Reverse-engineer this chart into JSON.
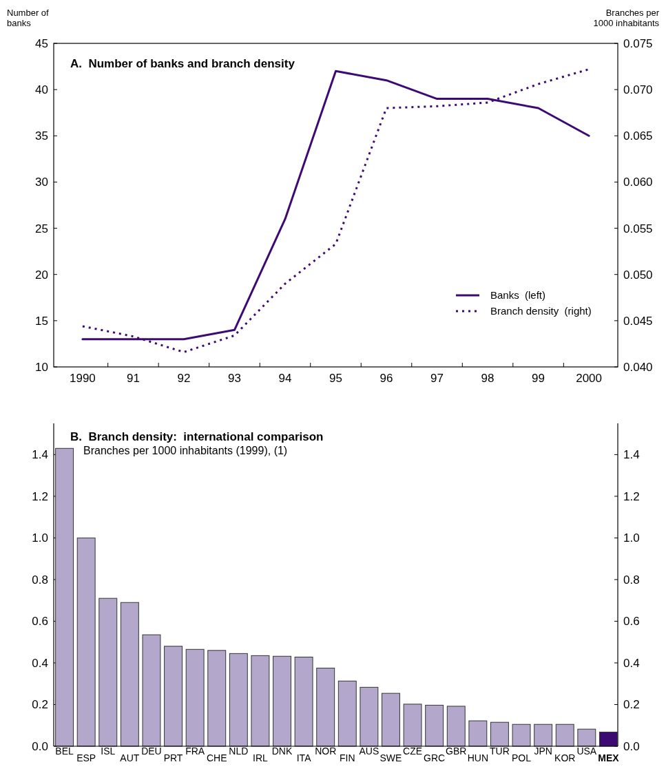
{
  "chart_data": [
    {
      "type": "line",
      "title": "A.  Number of banks and branch density",
      "ylabel": "Number of banks",
      "y2label": "Branches per 1000 inhabitants",
      "categories": [
        "1990",
        "91",
        "92",
        "93",
        "94",
        "95",
        "96",
        "97",
        "98",
        "99",
        "2000"
      ],
      "series": [
        {
          "name": "Banks  (left)",
          "color": "#3d0a73",
          "line_style": "solid",
          "values": [
            13,
            13,
            13,
            14,
            26,
            42,
            41,
            39,
            39,
            38,
            35
          ]
        },
        {
          "name": "Branch density  (right)",
          "color": "#3d0a73",
          "line_style": "dotted",
          "axis": "y2",
          "values": [
            0.0444,
            0.0433,
            0.0416,
            0.0434,
            0.049,
            0.0533,
            0.068,
            0.0682,
            0.0686,
            0.0706,
            0.0722
          ]
        }
      ],
      "ylim": [
        10,
        45
      ],
      "yticks": [
        10,
        15,
        20,
        25,
        30,
        35,
        40,
        45
      ],
      "y2lim": [
        0.04,
        0.075
      ],
      "y2ticks": [
        {
          "value": 0.04,
          "label": "0.040"
        },
        {
          "value": 0.045,
          "label": "0.045"
        },
        {
          "value": 0.05,
          "label": "0.050"
        },
        {
          "value": 0.055,
          "label": "0.055"
        },
        {
          "value": 0.06,
          "label": "0.060"
        },
        {
          "value": 0.065,
          "label": "0.065"
        },
        {
          "value": 0.07,
          "label": "0.070"
        },
        {
          "value": 0.075,
          "label": "0.075"
        }
      ],
      "legend": "bottom right",
      "grid": false
    },
    {
      "type": "bar",
      "title": "B.  Branch density:  international comparison",
      "subtitle": "Branches per 1000 inhabitants (1999), (1)",
      "categories": [
        "BEL",
        "ESP",
        "ISL",
        "AUT",
        "DEU",
        "PRT",
        "FRA",
        "CHE",
        "NLD",
        "IRL",
        "DNK",
        "ITA",
        "NOR",
        "FIN",
        "AUS",
        "SWE",
        "CZE",
        "GRC",
        "GBR",
        "HUN",
        "TUR",
        "POL",
        "JPN",
        "KOR",
        "USA",
        "MEX"
      ],
      "values": [
        1.43,
        1.0,
        0.71,
        0.69,
        0.535,
        0.48,
        0.465,
        0.46,
        0.445,
        0.435,
        0.432,
        0.428,
        0.375,
        0.313,
        0.283,
        0.254,
        0.202,
        0.197,
        0.192,
        0.122,
        0.115,
        0.105,
        0.105,
        0.105,
        0.082,
        0.068
      ],
      "colors": [
        "#b3a8cc",
        "#b3a8cc",
        "#b3a8cc",
        "#b3a8cc",
        "#b3a8cc",
        "#b3a8cc",
        "#b3a8cc",
        "#b3a8cc",
        "#b3a8cc",
        "#b3a8cc",
        "#b3a8cc",
        "#b3a8cc",
        "#b3a8cc",
        "#b3a8cc",
        "#b3a8cc",
        "#b3a8cc",
        "#b3a8cc",
        "#b3a8cc",
        "#b3a8cc",
        "#b3a8cc",
        "#b3a8cc",
        "#b3a8cc",
        "#b3a8cc",
        "#b3a8cc",
        "#b3a8cc",
        "#3d0a73"
      ],
      "ylim": [
        0,
        1.55
      ],
      "yticks": [
        {
          "value": 0,
          "label": "0.0"
        },
        {
          "value": 0.2,
          "label": "0.2"
        },
        {
          "value": 0.4,
          "label": "0.4"
        },
        {
          "value": 0.6,
          "label": "0.6"
        },
        {
          "value": 0.8,
          "label": "0.8"
        },
        {
          "value": 1.0,
          "label": "1.0"
        },
        {
          "value": 1.2,
          "label": "1.2"
        },
        {
          "value": 1.4,
          "label": "1.4"
        }
      ],
      "y2lim": [
        0,
        1.55
      ],
      "y2ticks": [
        {
          "value": 0,
          "label": "0.0"
        },
        {
          "value": 0.2,
          "label": "0.2"
        },
        {
          "value": 0.4,
          "label": "0.4"
        },
        {
          "value": 0.6,
          "label": "0.6"
        },
        {
          "value": 0.8,
          "label": "0.8"
        },
        {
          "value": 1.0,
          "label": "1.0"
        },
        {
          "value": 1.2,
          "label": "1.2"
        },
        {
          "value": 1.4,
          "label": "1.4"
        }
      ],
      "grid": false
    }
  ]
}
